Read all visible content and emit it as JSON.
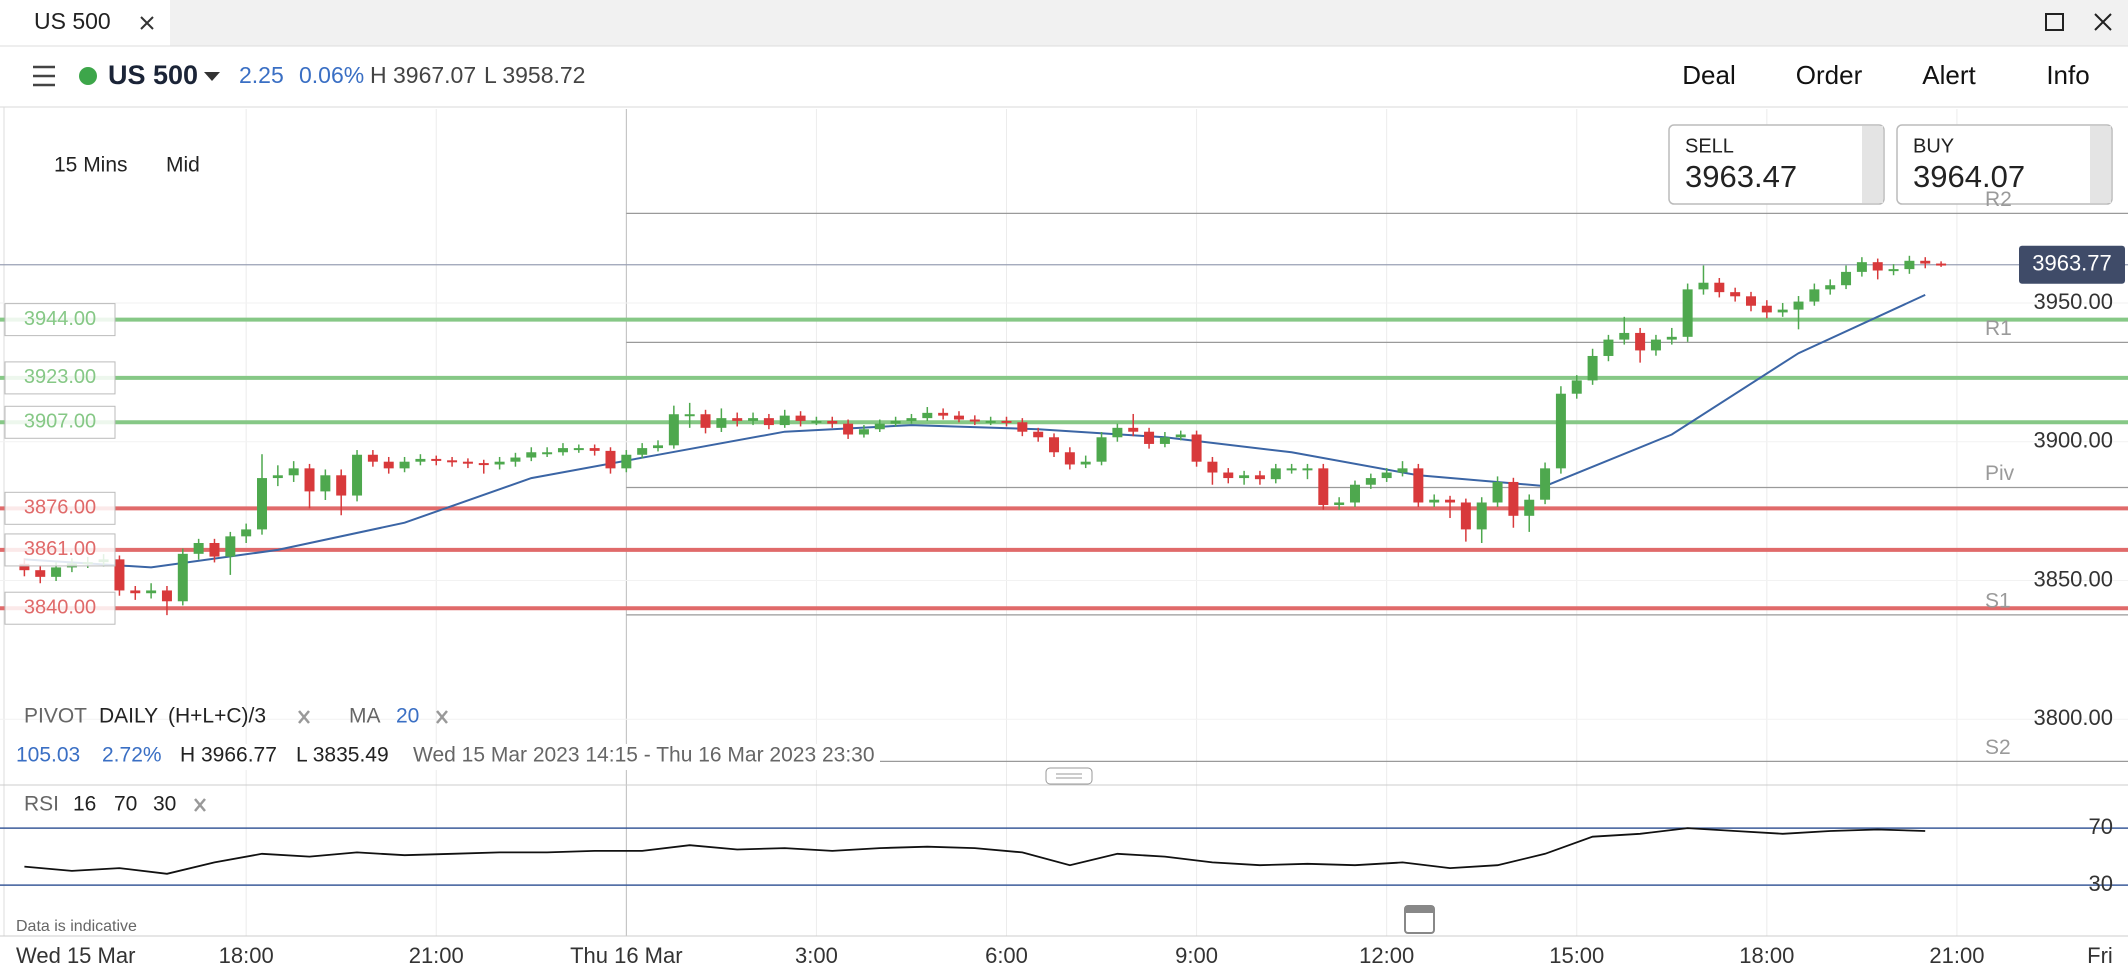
{
  "ui": {
    "tab": "US 500",
    "instrument": "US 500",
    "change": "2.25",
    "change_pct": "0.06%",
    "high": "H 3967.07",
    "low": "L 3958.72",
    "menu": [
      "Deal",
      "Order",
      "Alert",
      "Info"
    ],
    "interval": "15 Mins",
    "price_type": "Mid",
    "sell": {
      "label": "SELL",
      "price": "3963.47"
    },
    "buy": {
      "label": "BUY",
      "price": "3964.07"
    },
    "pivot_legend": [
      "PIVOT",
      "DAILY",
      "(H+L+C)/3"
    ],
    "ma_legend": [
      "MA",
      "20"
    ],
    "pivot_stats": [
      "105.03",
      "2.72%",
      "H 3966.77",
      "L 3835.49",
      "Wed 15 Mar 2023 14:15 - Thu 16 Mar 2023 23:30"
    ],
    "rsi_legend": [
      "RSI",
      "16",
      "70",
      "30"
    ],
    "disclaimer": "Data is indicative"
  },
  "chart_data": {
    "type": "candlestick",
    "x_start_label": "Wed 15 Mar",
    "xlim": [
      -1.54,
      132.8
    ],
    "xticks": [
      {
        "value": 14,
        "label": "18:00"
      },
      {
        "value": 26,
        "label": "21:00"
      },
      {
        "value": 38,
        "label": "Thu 16 Mar"
      },
      {
        "value": 50,
        "label": "3:00"
      },
      {
        "value": 62,
        "label": "6:00"
      },
      {
        "value": 74,
        "label": "9:00"
      },
      {
        "value": 86,
        "label": "12:00"
      },
      {
        "value": 98,
        "label": "15:00"
      },
      {
        "value": 110,
        "label": "18:00"
      },
      {
        "value": 122,
        "label": "21:00"
      },
      {
        "value": 134,
        "label": "Fri"
      }
    ],
    "ylim": [
      3785.3,
      4019.9
    ],
    "yticks": [
      {
        "value": 3800,
        "label": "3800.00"
      },
      {
        "value": 3850,
        "label": "3850.00"
      },
      {
        "value": 3900,
        "label": "3900.00"
      },
      {
        "value": 3950,
        "label": "3950.00"
      }
    ],
    "grid": true,
    "up_color": "#4ea84e",
    "down_color": "#d8393b",
    "candles": [
      [
        3856.0,
        3858.0,
        3851.5,
        3853.7
      ],
      [
        3853.7,
        3855.5,
        3849.0,
        3851.3
      ],
      [
        3851.3,
        3856.5,
        3849.8,
        3854.7
      ],
      [
        3854.7,
        3858.0,
        3853.0,
        3856.2
      ],
      [
        3856.2,
        3858.5,
        3854.5,
        3856.6
      ],
      [
        3856.6,
        3859.5,
        3855.0,
        3857.6
      ],
      [
        3857.6,
        3859.0,
        3844.5,
        3846.4
      ],
      [
        3846.4,
        3848.0,
        3843.0,
        3845.4
      ],
      [
        3845.4,
        3849.0,
        3843.5,
        3846.4
      ],
      [
        3846.4,
        3848.0,
        3837.5,
        3842.5
      ],
      [
        3842.5,
        3861.5,
        3841.0,
        3859.6
      ],
      [
        3859.6,
        3865.0,
        3857.5,
        3863.5
      ],
      [
        3863.5,
        3865.0,
        3856.5,
        3858.6
      ],
      [
        3858.6,
        3867.5,
        3852.0,
        3865.9
      ],
      [
        3865.9,
        3870.5,
        3863.5,
        3868.4
      ],
      [
        3868.4,
        3895.5,
        3866.5,
        3886.9
      ],
      [
        3886.9,
        3891.5,
        3884.0,
        3887.9
      ],
      [
        3887.9,
        3893.0,
        3885.5,
        3890.4
      ],
      [
        3890.4,
        3892.0,
        3876.0,
        3882.1
      ],
      [
        3882.1,
        3890.0,
        3879.0,
        3887.9
      ],
      [
        3887.9,
        3890.0,
        3873.5,
        3880.6
      ],
      [
        3880.6,
        3897.0,
        3878.5,
        3895.3
      ],
      [
        3895.3,
        3897.0,
        3891.0,
        3892.8
      ],
      [
        3892.8,
        3894.5,
        3888.5,
        3890.4
      ],
      [
        3890.4,
        3894.5,
        3889.0,
        3892.8
      ],
      [
        3892.8,
        3895.5,
        3891.5,
        3893.8
      ],
      [
        3893.8,
        3895.0,
        3891.5,
        3893.3
      ],
      [
        3893.3,
        3894.5,
        3891.0,
        3892.8
      ],
      [
        3892.8,
        3894.0,
        3890.5,
        3892.3
      ],
      [
        3892.3,
        3893.5,
        3888.5,
        3891.8
      ],
      [
        3891.8,
        3894.5,
        3890.0,
        3892.8
      ],
      [
        3892.8,
        3896.0,
        3891.0,
        3894.3
      ],
      [
        3894.3,
        3898.0,
        3893.0,
        3896.2
      ],
      [
        3896.2,
        3898.0,
        3894.5,
        3896.2
      ],
      [
        3896.2,
        3899.5,
        3895.0,
        3897.7
      ],
      [
        3897.7,
        3899.0,
        3896.0,
        3897.7
      ],
      [
        3897.7,
        3899.0,
        3895.0,
        3896.7
      ],
      [
        3896.7,
        3898.0,
        3888.5,
        3890.4
      ],
      [
        3890.4,
        3897.0,
        3889.0,
        3895.3
      ],
      [
        3895.3,
        3899.5,
        3894.0,
        3897.7
      ],
      [
        3897.7,
        3900.5,
        3896.5,
        3898.7
      ],
      [
        3898.7,
        3913.0,
        3897.5,
        3909.9
      ],
      [
        3909.9,
        3914.0,
        3905.0,
        3909.9
      ],
      [
        3909.9,
        3911.5,
        3903.0,
        3905.0
      ],
      [
        3905.0,
        3912.0,
        3903.5,
        3908.5
      ],
      [
        3908.5,
        3910.5,
        3905.5,
        3907.5
      ],
      [
        3907.5,
        3910.5,
        3906.0,
        3908.5
      ],
      [
        3908.5,
        3910.0,
        3904.5,
        3906.0
      ],
      [
        3906.0,
        3911.5,
        3905.0,
        3909.4
      ],
      [
        3909.4,
        3911.0,
        3905.5,
        3907.5
      ],
      [
        3907.5,
        3909.0,
        3906.0,
        3907.5
      ],
      [
        3907.5,
        3909.0,
        3905.0,
        3906.5
      ],
      [
        3906.5,
        3908.0,
        3901.0,
        3902.6
      ],
      [
        3902.6,
        3906.0,
        3901.5,
        3904.5
      ],
      [
        3904.5,
        3908.0,
        3903.5,
        3906.5
      ],
      [
        3906.5,
        3909.0,
        3905.5,
        3907.5
      ],
      [
        3907.5,
        3910.0,
        3906.5,
        3908.5
      ],
      [
        3908.5,
        3912.5,
        3907.5,
        3910.4
      ],
      [
        3910.4,
        3912.0,
        3908.0,
        3909.4
      ],
      [
        3909.4,
        3911.0,
        3907.0,
        3908.0
      ],
      [
        3908.0,
        3909.5,
        3906.0,
        3907.5
      ],
      [
        3907.5,
        3909.0,
        3906.0,
        3907.5
      ],
      [
        3907.5,
        3909.0,
        3905.5,
        3907.0
      ],
      [
        3907.0,
        3908.5,
        3902.0,
        3903.6
      ],
      [
        3903.6,
        3905.0,
        3900.0,
        3901.6
      ],
      [
        3901.6,
        3903.0,
        3894.5,
        3896.2
      ],
      [
        3896.2,
        3898.0,
        3890.0,
        3891.8
      ],
      [
        3891.8,
        3895.0,
        3890.5,
        3892.8
      ],
      [
        3892.8,
        3903.5,
        3891.5,
        3901.6
      ],
      [
        3901.6,
        3906.5,
        3900.0,
        3905.0
      ],
      [
        3905.0,
        3910.0,
        3902.0,
        3903.6
      ],
      [
        3903.6,
        3905.0,
        3897.5,
        3899.2
      ],
      [
        3899.2,
        3903.5,
        3898.0,
        3901.6
      ],
      [
        3901.6,
        3904.0,
        3900.5,
        3902.6
      ],
      [
        3902.6,
        3904.0,
        3891.0,
        3892.8
      ],
      [
        3892.8,
        3894.5,
        3884.5,
        3888.9
      ],
      [
        3888.9,
        3890.5,
        3885.0,
        3886.9
      ],
      [
        3886.9,
        3889.5,
        3884.5,
        3887.9
      ],
      [
        3887.9,
        3889.5,
        3884.5,
        3886.5
      ],
      [
        3886.5,
        3892.0,
        3885.0,
        3890.4
      ],
      [
        3890.4,
        3892.0,
        3888.5,
        3890.4
      ],
      [
        3890.4,
        3892.0,
        3886.5,
        3890.4
      ],
      [
        3890.4,
        3892.0,
        3875.5,
        3877.2
      ],
      [
        3877.2,
        3880.0,
        3875.5,
        3878.1
      ],
      [
        3878.1,
        3886.0,
        3876.5,
        3884.5
      ],
      [
        3884.5,
        3888.5,
        3883.0,
        3886.9
      ],
      [
        3886.9,
        3890.5,
        3885.5,
        3888.9
      ],
      [
        3888.9,
        3893.0,
        3887.5,
        3890.4
      ],
      [
        3890.4,
        3892.0,
        3876.5,
        3878.1
      ],
      [
        3878.1,
        3881.0,
        3876.5,
        3879.1
      ],
      [
        3879.1,
        3880.5,
        3872.5,
        3878.1
      ],
      [
        3878.1,
        3879.5,
        3864.0,
        3868.4
      ],
      [
        3868.4,
        3880.0,
        3863.5,
        3878.1
      ],
      [
        3878.1,
        3887.5,
        3876.5,
        3885.5
      ],
      [
        3885.5,
        3887.0,
        3869.0,
        3873.3
      ],
      [
        3873.3,
        3881.0,
        3867.5,
        3879.1
      ],
      [
        3879.1,
        3892.5,
        3877.5,
        3890.4
      ],
      [
        3890.4,
        3920.0,
        3888.5,
        3917.3
      ],
      [
        3917.3,
        3924.0,
        3915.5,
        3922.1
      ],
      [
        3922.1,
        3933.5,
        3920.5,
        3930.9
      ],
      [
        3930.9,
        3938.5,
        3929.0,
        3936.8
      ],
      [
        3936.8,
        3945.0,
        3935.0,
        3939.2
      ],
      [
        3939.2,
        3941.0,
        3928.5,
        3932.9
      ],
      [
        3932.9,
        3938.5,
        3931.0,
        3936.8
      ],
      [
        3936.8,
        3941.0,
        3935.0,
        3937.8
      ],
      [
        3937.8,
        3957.0,
        3936.0,
        3954.9
      ],
      [
        3954.9,
        3963.5,
        3953.0,
        3957.3
      ],
      [
        3957.3,
        3959.0,
        3952.0,
        3953.9
      ],
      [
        3953.9,
        3955.5,
        3950.5,
        3952.4
      ],
      [
        3952.4,
        3954.0,
        3947.0,
        3949.0
      ],
      [
        3949.0,
        3951.0,
        3944.5,
        3946.6
      ],
      [
        3946.6,
        3950.0,
        3945.0,
        3947.6
      ],
      [
        3947.6,
        3952.5,
        3940.5,
        3950.5
      ],
      [
        3950.5,
        3957.0,
        3949.0,
        3954.9
      ],
      [
        3954.9,
        3958.5,
        3953.0,
        3956.4
      ],
      [
        3956.4,
        3963.5,
        3955.0,
        3961.2
      ],
      [
        3961.2,
        3966.5,
        3959.5,
        3964.7
      ],
      [
        3964.7,
        3966.0,
        3958.5,
        3961.7
      ],
      [
        3961.7,
        3964.0,
        3960.0,
        3962.2
      ],
      [
        3962.2,
        3967.0,
        3960.5,
        3965.2
      ],
      [
        3965.2,
        3966.5,
        3962.5,
        3964.2
      ],
      [
        3964.2,
        3965.0,
        3963.0,
        3963.77
      ]
    ],
    "last_price": {
      "value": 3963.77,
      "label": "3963.77"
    },
    "levels": [
      {
        "value": 3944,
        "label": "3944.00",
        "color": "#86c886"
      },
      {
        "value": 3923,
        "label": "3923.00",
        "color": "#86c886"
      },
      {
        "value": 3907,
        "label": "3907.00",
        "color": "#86c886"
      },
      {
        "value": 3876,
        "label": "3876.00",
        "color": "#e06a6a"
      },
      {
        "value": 3861,
        "label": "3861.00",
        "color": "#e06a6a"
      },
      {
        "value": 3840,
        "label": "3840.00",
        "color": "#e06a6a"
      }
    ],
    "pivots": {
      "start": 38,
      "color": "#9a9a9a",
      "lines": [
        {
          "name": "R2",
          "value": 3982.3
        },
        {
          "name": "R1",
          "value": 3935.8
        },
        {
          "name": "Piv",
          "value": 3883.5
        },
        {
          "name": "S1",
          "value": 3837.6
        },
        {
          "name": "S2",
          "value": 3784.8
        }
      ]
    },
    "ma": {
      "color": "#3b65a5",
      "x": [
        0,
        8,
        16,
        24,
        32,
        40,
        48,
        56,
        64,
        72,
        80,
        88,
        96,
        104,
        112,
        120
      ],
      "values": [
        3857.6,
        3854.7,
        3861.0,
        3870.8,
        3886.9,
        3895.3,
        3903.6,
        3906.0,
        3904.5,
        3901.6,
        3896.2,
        3887.9,
        3884.0,
        3902.6,
        3931.9,
        3952.9
      ]
    },
    "rsi": {
      "color": "#111111",
      "band_color": "#3b5b9a",
      "ylim": [
        1.4,
        96.7
      ],
      "yticks": [
        30,
        70
      ],
      "x": [
        0,
        3,
        6,
        9,
        12,
        15,
        18,
        21,
        24,
        27,
        30,
        33,
        36,
        39,
        42,
        45,
        48,
        51,
        54,
        57,
        60,
        63,
        66,
        69,
        72,
        75,
        78,
        81,
        84,
        87,
        90,
        93,
        96,
        99,
        102,
        105,
        108,
        111,
        114,
        117,
        120
      ],
      "values": [
        43,
        40,
        42,
        38,
        46,
        52,
        50,
        53,
        51,
        52,
        53,
        53,
        54,
        54,
        58,
        55,
        56,
        54,
        56,
        57,
        56,
        53,
        44,
        52,
        50,
        46,
        44,
        45,
        44,
        46,
        42,
        44,
        52,
        64,
        66,
        70,
        68,
        66,
        68,
        69,
        68
      ]
    }
  }
}
